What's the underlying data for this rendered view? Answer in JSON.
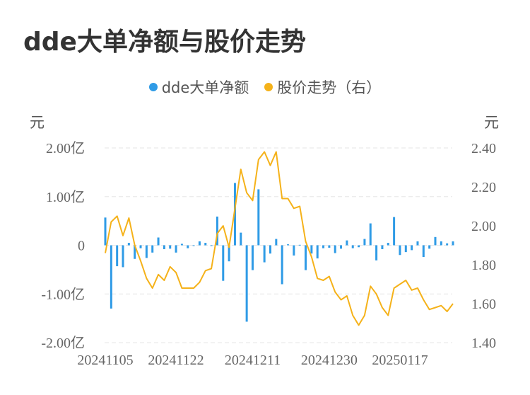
{
  "title": "dde大单净额与股价走势",
  "legend": [
    {
      "label": "dde大单净额",
      "color": "#2f9be6"
    },
    {
      "label": "股价走势（右）",
      "color": "#f5b21a"
    }
  ],
  "left_unit": "元",
  "right_unit": "元",
  "chart_data": {
    "type": "bar+line",
    "title": "dde大单净额与股价走势",
    "x_tick_labels": [
      "20241105",
      "20241122",
      "20241211",
      "20241230",
      "20250117"
    ],
    "left_axis": {
      "ticks": [
        "2.00亿",
        "1.00亿",
        "0",
        "-1.00亿",
        "-2.00亿"
      ],
      "range": [
        -2.0,
        2.0
      ],
      "unit": "元"
    },
    "right_axis": {
      "ticks": [
        "2.40",
        "2.20",
        "2.00",
        "1.80",
        "1.60",
        "1.40"
      ],
      "range": [
        1.4,
        2.4
      ],
      "unit": "元"
    },
    "grid": true,
    "legend_position": "top-center",
    "series": [
      {
        "name": "dde大单净额",
        "type": "bar",
        "axis": "left",
        "unit": "亿",
        "values": [
          0.57,
          -1.3,
          -0.43,
          -0.45,
          0.05,
          -0.28,
          -0.06,
          -0.26,
          -0.15,
          0.16,
          -0.08,
          -0.07,
          -0.15,
          0.03,
          -0.06,
          0.0,
          0.08,
          0.05,
          0.0,
          0.59,
          -0.73,
          -0.33,
          1.28,
          0.26,
          -1.57,
          -0.51,
          1.15,
          -0.35,
          -0.17,
          0.13,
          -0.8,
          0.02,
          -0.21,
          0.01,
          -0.51,
          -0.17,
          -0.27,
          -0.06,
          -0.05,
          -0.16,
          -0.07,
          0.1,
          -0.06,
          -0.04,
          0.13,
          0.45,
          -0.31,
          -0.08,
          0.05,
          0.58,
          -0.2,
          -0.14,
          -0.1,
          0.08,
          -0.24,
          -0.07,
          0.17,
          0.08,
          0.04,
          0.08
        ]
      },
      {
        "name": "股价走势（右）",
        "type": "line",
        "axis": "right",
        "values": [
          1.86,
          2.02,
          2.05,
          1.95,
          2.04,
          1.9,
          1.82,
          1.73,
          1.68,
          1.75,
          1.72,
          1.79,
          1.76,
          1.68,
          1.68,
          1.68,
          1.71,
          1.77,
          1.78,
          1.96,
          2.0,
          1.89,
          2.09,
          2.29,
          2.17,
          2.13,
          2.34,
          2.38,
          2.31,
          2.38,
          2.14,
          2.14,
          2.09,
          2.1,
          1.92,
          1.84,
          1.73,
          1.72,
          1.74,
          1.66,
          1.62,
          1.64,
          1.54,
          1.49,
          1.54,
          1.69,
          1.65,
          1.58,
          1.54,
          1.68,
          1.7,
          1.72,
          1.67,
          1.68,
          1.62,
          1.57,
          1.58,
          1.59,
          1.56,
          1.6
        ]
      }
    ]
  }
}
